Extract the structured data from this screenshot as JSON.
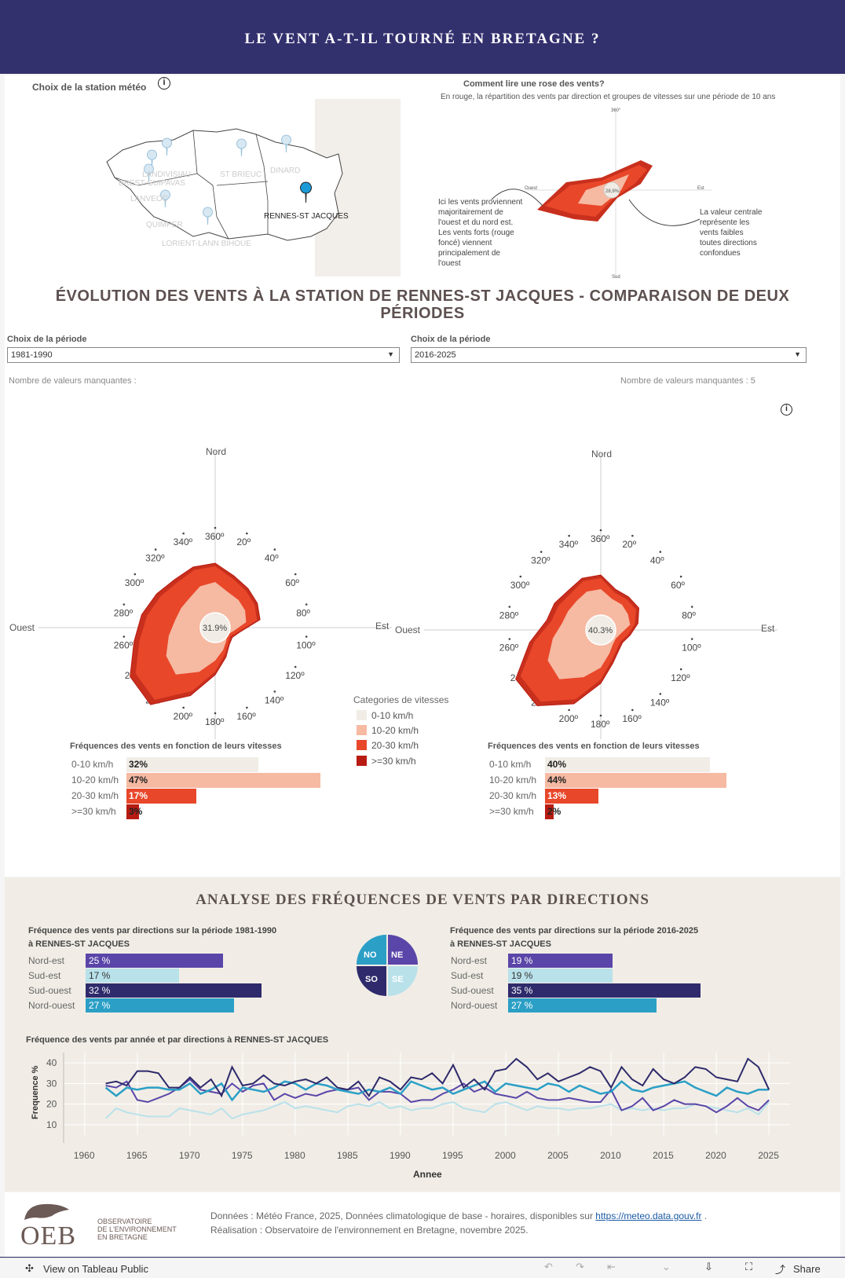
{
  "header": {
    "title": "LE VENT A-T-IL TOURNÉ EN BRETAGNE ?"
  },
  "map": {
    "label": "Choix de la station météo",
    "info_icon": "info-icon",
    "stations": [
      "DINARD",
      "ST BRIEUC",
      "LANDIVISIAU",
      "BREST-GUIPAVAS",
      "LANVEOC",
      "QUIMPER",
      "LORIENT-LANN BIHOUE",
      "RENNES-ST JACQUES"
    ]
  },
  "howto": {
    "title": "Comment lire une rose des vents?",
    "subtitle": "En rouge, la répartition des vents par direction et groupes de vitesses sur une période de 10 ans",
    "left_note": "Ici les vents proviennent majoritairement de l'ouest et du nord est. Les vents forts (rouge foncé) viennent principalement de l'ouest",
    "right_note": "La valeur centrale représente les vents faibles toutes directions confondues",
    "center": "28,9%",
    "north": "360°",
    "south": "Sud",
    "east": "Est",
    "west": "Ouest"
  },
  "evo": {
    "title": "ÉVOLUTION DES VENTS À LA STATION DE RENNES-ST JACQUES - COMPARAISON DE DEUX PÉRIODES"
  },
  "left": {
    "period_label": "Choix de la période",
    "period": "1981-1990",
    "missing": "Nombre de valeurs manquantes :",
    "missing_val": "",
    "center": "31.9%",
    "bars_title": "Fréquences des vents en fonction de leurs vitesses"
  },
  "right": {
    "period_label": "Choix de la période",
    "period": "2016-2025",
    "missing": "Nombre de valeurs manquantes :",
    "missing_val": "5",
    "center": "40.3%",
    "bars_title": "Fréquences des vents en fonction de leurs vitesses"
  },
  "rose": {
    "north": "Nord",
    "south": "Sud",
    "east": "Est",
    "west": "Ouest",
    "ticks": [
      "360º",
      "20º",
      "40º",
      "60º",
      "80º",
      "100º",
      "120º",
      "140º",
      "160º",
      "180º",
      "200º",
      "220º",
      "240º",
      "260º",
      "280º",
      "300º",
      "320º",
      "340º"
    ]
  },
  "legend": {
    "title": "Categories de vitesses",
    "items": [
      "0-10 km/h",
      "10-20 km/h",
      "20-30 km/h",
      ">=30 km/h"
    ],
    "colors": [
      "#f1ede6",
      "#f6b9a2",
      "#e8472a",
      "#b81b12"
    ]
  },
  "analysis": {
    "title": "ANALYSE DES FRÉQUENCES DE VENTS PAR DIRECTIONS",
    "left_title": "Fréquence des vents par directions sur la période 1981-1990 à RENNES-ST JACQUES",
    "right_title": "Fréquence des vents par directions sur la période 2016-2025 à RENNES-ST JACQUES",
    "dir_labels": [
      "Nord-est",
      "Sud-est",
      "Sud-ouest",
      "Nord-ouest"
    ],
    "quad": [
      "NO",
      "NE",
      "SO",
      "SE"
    ],
    "line_title": "Fréquence des vents par année et par directions à RENNES-ST JACQUES",
    "ylabel": "Frequence %",
    "xlabel": "Annee"
  },
  "footer": {
    "logo": "OEB",
    "logo_sub1": "OBSERVATOIRE",
    "logo_sub2": "DE L'ENVIRONNEMENT",
    "logo_sub3": "EN BRETAGNE",
    "line1": "Données : Météo France, 2025, Données climatologique de base - horaires, disponibles sur",
    "link": "https://meteo.data.gouv.fr",
    "line1_end": ".",
    "line2": "Réalisation :  Observatoire de l'environnement en Bretagne, novembre 2025."
  },
  "toolbar": {
    "view": "View on Tableau Public",
    "share": "Share"
  },
  "chart_data": [
    {
      "type": "radar",
      "title": "Rose des vents 1981-1990",
      "center_value": 31.9,
      "directions": [
        0,
        20,
        40,
        60,
        80,
        100,
        120,
        140,
        160,
        180,
        200,
        220,
        240,
        260,
        280,
        300,
        320,
        340
      ]
    },
    {
      "type": "radar",
      "title": "Rose des vents 2016-2025",
      "center_value": 40.3,
      "directions": [
        0,
        20,
        40,
        60,
        80,
        100,
        120,
        140,
        160,
        180,
        200,
        220,
        240,
        260,
        280,
        300,
        320,
        340
      ]
    },
    {
      "type": "bar",
      "title": "Fréquences des vents en fonction de leurs vitesses",
      "categories": [
        "0-10 km/h",
        "10-20 km/h",
        "20-30 km/h",
        ">=30 km/h"
      ],
      "series": [
        {
          "name": "1981-1990",
          "values": [
            32,
            47,
            17,
            3
          ]
        },
        {
          "name": "2016-2025",
          "values": [
            40,
            44,
            13,
            2
          ]
        }
      ],
      "unit": "%"
    },
    {
      "type": "bar",
      "title": "Fréquence des vents par directions",
      "categories": [
        "Nord-est",
        "Sud-est",
        "Sud-ouest",
        "Nord-ouest"
      ],
      "series": [
        {
          "name": "1981-1990",
          "values": [
            25,
            17,
            32,
            27
          ]
        },
        {
          "name": "2016-2025",
          "values": [
            19,
            19,
            35,
            27
          ]
        }
      ],
      "colors": [
        "#5a45a8",
        "#b9e1ea",
        "#2e2a6b",
        "#2b9fc6"
      ],
      "unit": " %"
    },
    {
      "type": "line",
      "title": "Fréquence des vents par année et par directions à RENNES-ST JACQUES",
      "xlabel": "Annee",
      "ylabel": "Frequence %",
      "xlim": [
        1958,
        2027
      ],
      "ylim": [
        5,
        45
      ],
      "xticks": [
        1960,
        1965,
        1970,
        1975,
        1980,
        1985,
        1990,
        1995,
        2000,
        2005,
        2010,
        2015,
        2020,
        2025
      ],
      "yticks": [
        10,
        20,
        30,
        40
      ],
      "x": [
        1962,
        1963,
        1964,
        1965,
        1966,
        1967,
        1968,
        1969,
        1970,
        1971,
        1972,
        1973,
        1974,
        1975,
        1976,
        1977,
        1978,
        1979,
        1980,
        1981,
        1982,
        1983,
        1984,
        1985,
        1986,
        1987,
        1988,
        1989,
        1990,
        1991,
        1992,
        1993,
        1994,
        1995,
        1996,
        1997,
        1998,
        1999,
        2000,
        2001,
        2002,
        2003,
        2004,
        2005,
        2006,
        2007,
        2008,
        2009,
        2010,
        2011,
        2012,
        2013,
        2014,
        2015,
        2016,
        2017,
        2018,
        2019,
        2020,
        2021,
        2022,
        2023,
        2024,
        2025
      ],
      "series": [
        {
          "name": "Sud-ouest",
          "color": "#2e2a6b",
          "values": [
            30,
            31,
            29,
            36,
            36,
            35,
            28,
            28,
            33,
            28,
            32,
            24,
            38,
            29,
            30,
            34,
            30,
            29,
            31,
            32,
            30,
            33,
            28,
            27,
            31,
            24,
            33,
            31,
            27,
            33,
            32,
            35,
            30,
            39,
            28,
            32,
            27,
            36,
            37,
            42,
            38,
            32,
            35,
            31,
            33,
            35,
            38,
            36,
            28,
            38,
            32,
            29,
            37,
            32,
            30,
            33,
            38,
            37,
            33,
            32,
            31,
            42,
            38,
            27
          ]
        },
        {
          "name": "Nord-ouest",
          "color": "#2b9fc6",
          "values": [
            28,
            24,
            28,
            27,
            28,
            28,
            27,
            27,
            30,
            25,
            27,
            30,
            22,
            28,
            27,
            26,
            28,
            31,
            30,
            27,
            30,
            29,
            27,
            26,
            25,
            27,
            26,
            28,
            25,
            31,
            29,
            27,
            28,
            25,
            27,
            29,
            31,
            26,
            30,
            29,
            28,
            27,
            30,
            29,
            26,
            29,
            27,
            25,
            26,
            31,
            27,
            26,
            28,
            29,
            30,
            31,
            28,
            26,
            24,
            28,
            26,
            25,
            27,
            27
          ]
        },
        {
          "name": "Nord-est",
          "color": "#5a45a8",
          "values": [
            29,
            28,
            31,
            22,
            21,
            23,
            25,
            28,
            32,
            27,
            26,
            25,
            30,
            26,
            29,
            30,
            22,
            25,
            23,
            25,
            24,
            26,
            27,
            27,
            28,
            22,
            26,
            26,
            25,
            21,
            22,
            22,
            25,
            27,
            30,
            26,
            28,
            25,
            24,
            23,
            26,
            23,
            22,
            22,
            23,
            22,
            21,
            21,
            27,
            17,
            19,
            23,
            17,
            19,
            22,
            20,
            20,
            19,
            16,
            19,
            23,
            19,
            17,
            22
          ]
        },
        {
          "name": "Sud-est",
          "color": "#b9e1ea",
          "values": [
            13,
            18,
            16,
            15,
            14,
            14,
            14,
            18,
            17,
            16,
            15,
            18,
            13,
            15,
            16,
            17,
            19,
            21,
            18,
            19,
            18,
            17,
            16,
            19,
            20,
            19,
            21,
            18,
            19,
            17,
            18,
            18,
            20,
            21,
            18,
            17,
            16,
            20,
            21,
            19,
            17,
            19,
            18,
            18,
            17,
            18,
            18,
            19,
            20,
            17,
            18,
            17,
            18,
            17,
            18,
            18,
            20,
            19,
            18,
            17,
            16,
            18,
            15,
            21
          ]
        }
      ]
    }
  ]
}
